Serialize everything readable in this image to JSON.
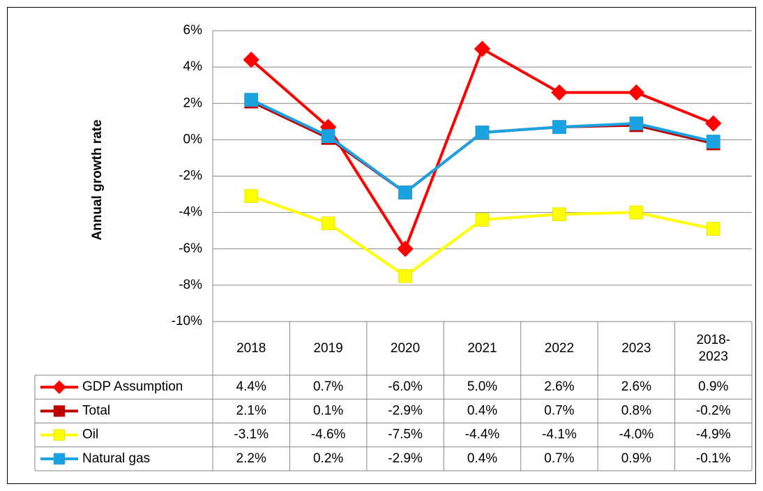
{
  "chart_data": {
    "type": "line",
    "y_label": "Annual growth rate",
    "categories": [
      "2018",
      "2019",
      "2020",
      "2021",
      "2022",
      "2023",
      "2018-2023"
    ],
    "ylim": [
      -10,
      6
    ],
    "yticks": [
      {
        "value": -10,
        "label": "-10%"
      },
      {
        "value": -8,
        "label": "-8%"
      },
      {
        "value": -6,
        "label": "-6%"
      },
      {
        "value": -4,
        "label": "-4%"
      },
      {
        "value": -2,
        "label": "-2%"
      },
      {
        "value": 0,
        "label": "0%"
      },
      {
        "value": 2,
        "label": "2%"
      },
      {
        "value": 4,
        "label": "4%"
      },
      {
        "value": 6,
        "label": "6%"
      }
    ],
    "grid": true,
    "series": [
      {
        "name": "GDP Assumption",
        "color": "#ff0000",
        "marker": "diamond",
        "values": [
          4.4,
          0.7,
          -6.0,
          5.0,
          2.6,
          2.6,
          0.9
        ],
        "value_labels": [
          "4.4%",
          "0.7%",
          "-6.0%",
          "5.0%",
          "2.6%",
          "2.6%",
          "0.9%"
        ]
      },
      {
        "name": "Total",
        "color": "#c00000",
        "marker": "square",
        "values": [
          2.1,
          0.1,
          -2.9,
          0.4,
          0.7,
          0.8,
          -0.2
        ],
        "value_labels": [
          "2.1%",
          "0.1%",
          "-2.9%",
          "0.4%",
          "0.7%",
          "0.8%",
          "-0.2%"
        ]
      },
      {
        "name": "Oil",
        "color": "#ffff00",
        "marker": "square",
        "values": [
          -3.1,
          -4.6,
          -7.5,
          -4.4,
          -4.1,
          -4.0,
          -4.9
        ],
        "value_labels": [
          "-3.1%",
          "-4.6%",
          "-7.5%",
          "-4.4%",
          "-4.1%",
          "-4.0%",
          "-4.9%"
        ]
      },
      {
        "name": "Natural gas",
        "color": "#1aa3e0",
        "marker": "square",
        "values": [
          2.2,
          0.2,
          -2.9,
          0.4,
          0.7,
          0.9,
          -0.1
        ],
        "value_labels": [
          "2.2%",
          "0.2%",
          "-2.9%",
          "0.4%",
          "0.7%",
          "0.9%",
          "-0.1%"
        ]
      }
    ]
  }
}
